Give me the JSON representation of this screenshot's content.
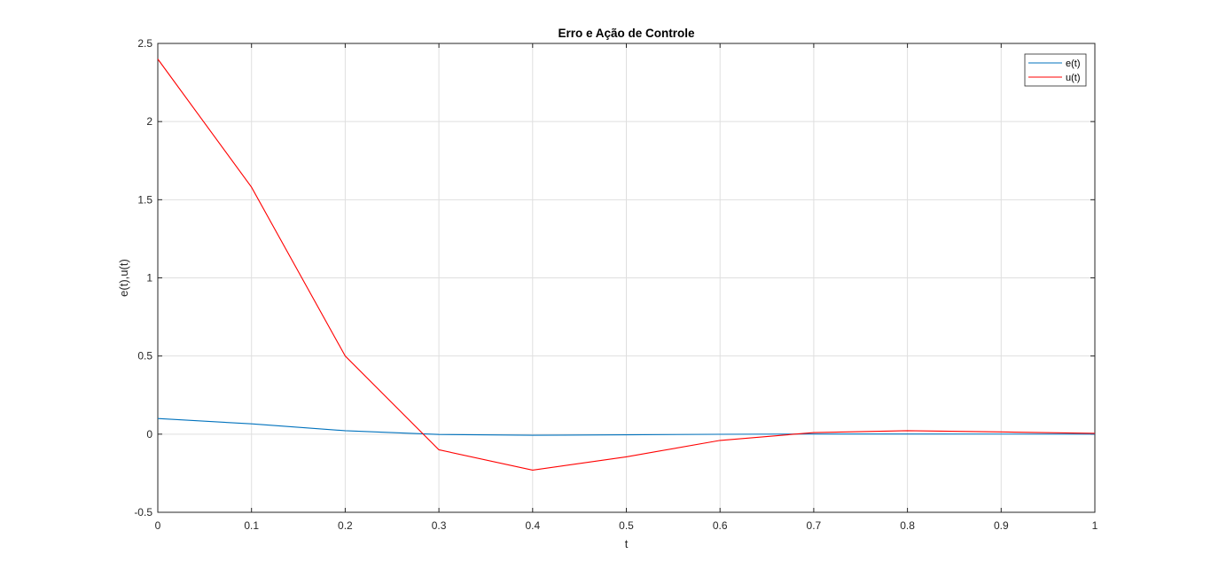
{
  "chart_data": {
    "type": "line",
    "title": "Erro e Ação de Controle",
    "xlabel": "t",
    "ylabel": "e(t),u(t)",
    "xlim": [
      0,
      1
    ],
    "ylim": [
      -0.5,
      2.5
    ],
    "xticks": [
      0,
      0.1,
      0.2,
      0.3,
      0.4,
      0.5,
      0.6,
      0.7,
      0.8,
      0.9,
      1
    ],
    "xtick_labels": [
      "0",
      "0.1",
      "0.2",
      "0.3",
      "0.4",
      "0.5",
      "0.6",
      "0.7",
      "0.8",
      "0.9",
      "1"
    ],
    "yticks": [
      -0.5,
      0,
      0.5,
      1,
      1.5,
      2,
      2.5
    ],
    "ytick_labels": [
      "-0.5",
      "0",
      "0.5",
      "1",
      "1.5",
      "2",
      "2.5"
    ],
    "grid": true,
    "legend_position": "top-right",
    "x": [
      0,
      0.1,
      0.2,
      0.3,
      0.4,
      0.5,
      0.6,
      0.7,
      0.8,
      0.9,
      1
    ],
    "series": [
      {
        "name": "e(t)",
        "color": "#0072BD",
        "values": [
          0.1,
          0.066,
          0.022,
          -0.002,
          -0.007,
          -0.004,
          -0.001,
          0.001,
          0.001,
          0.0005,
          0.0
        ]
      },
      {
        "name": "u(t)",
        "color": "#FF0000",
        "values": [
          2.4,
          1.58,
          0.5,
          -0.1,
          -0.23,
          -0.145,
          -0.04,
          0.01,
          0.022,
          0.014,
          0.005
        ]
      }
    ]
  }
}
